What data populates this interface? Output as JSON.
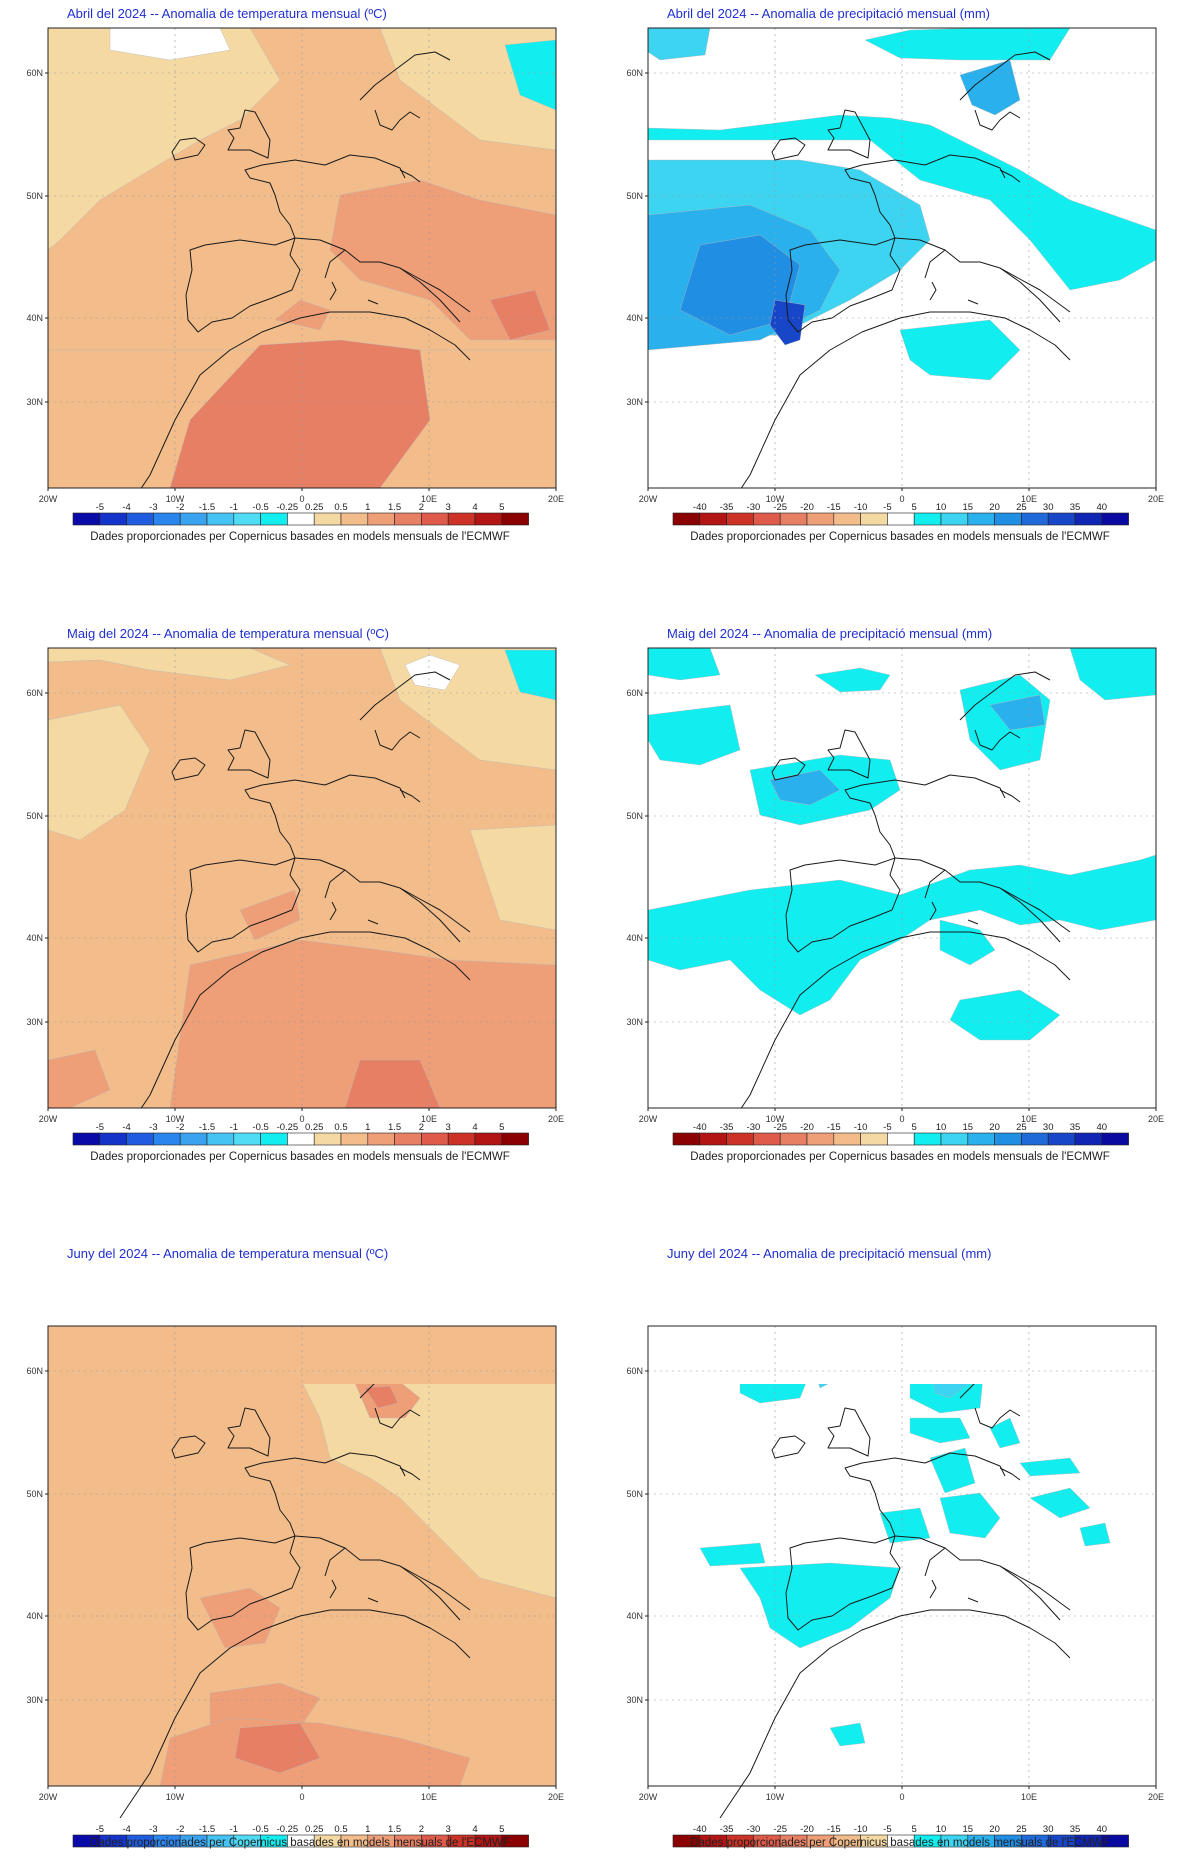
{
  "credit": "Dades proporcionades per Copernicus basades en models mensuals de l'ECMWF",
  "lat_labels": [
    "60N",
    "50N",
    "40N",
    "30N"
  ],
  "lon_labels": [
    "20W",
    "10W",
    "0",
    "10E",
    "20E"
  ],
  "temp_scale": {
    "labels": [
      "-5",
      "-4",
      "-3",
      "-2",
      "-1.5",
      "-1",
      "-0.5",
      "-0.25",
      "0.25",
      "0.5",
      "1",
      "1.5",
      "2",
      "3",
      "4",
      "5"
    ],
    "colors": [
      "#0a0aa8",
      "#1433c8",
      "#1f5ce0",
      "#2a85ec",
      "#3aa3f0",
      "#45c3f3",
      "#50dcf5",
      "#12eef0",
      "#ffffff",
      "#f4d9a2",
      "#f2bd8b",
      "#ee9f78",
      "#e77f65",
      "#de5a4a",
      "#cc3225",
      "#b31515",
      "#8b0000"
    ]
  },
  "prec_scale": {
    "labels": [
      "-40",
      "-35",
      "-30",
      "-25",
      "-20",
      "-15",
      "-10",
      "-5",
      "5",
      "10",
      "15",
      "20",
      "25",
      "30",
      "35",
      "40"
    ],
    "colors": [
      "#8b0000",
      "#b31515",
      "#cc3225",
      "#de5a4a",
      "#e77f65",
      "#ee9f78",
      "#f2bd8b",
      "#f4d9a2",
      "#ffffff",
      "#12eef0",
      "#3cd4f0",
      "#2ab0ec",
      "#1f8ee3",
      "#1f6ad8",
      "#1747c8",
      "#0f25b4",
      "#0a0aa0"
    ]
  },
  "panels": [
    {
      "id": "apr-temp",
      "title": "Abril del 2024 -- Anomalia de temperatura mensual (ºC)",
      "kind": "temperature",
      "base": "#f2bd8b"
    },
    {
      "id": "apr-prec",
      "title": "Abril del 2024 -- Anomalia de precipitació mensual (mm)",
      "kind": "precipitation",
      "base": "#ffffff"
    },
    {
      "id": "may-temp",
      "title": "Maig del 2024 -- Anomalia de temperatura mensual (ºC)",
      "kind": "temperature",
      "base": "#f2bd8b"
    },
    {
      "id": "may-prec",
      "title": "Maig del 2024 -- Anomalia de precipitació mensual (mm)",
      "kind": "precipitation",
      "base": "#ffffff"
    },
    {
      "id": "jun-temp",
      "title": "Juny del 2024 -- Anomalia de temperatura mensual (ºC)",
      "kind": "temperature",
      "base": "#f2bd8b"
    },
    {
      "id": "jun-prec",
      "title": "Juny del 2024 -- Anomalia de precipitació mensual (mm)",
      "kind": "precipitation",
      "base": "#ffffff"
    }
  ]
}
